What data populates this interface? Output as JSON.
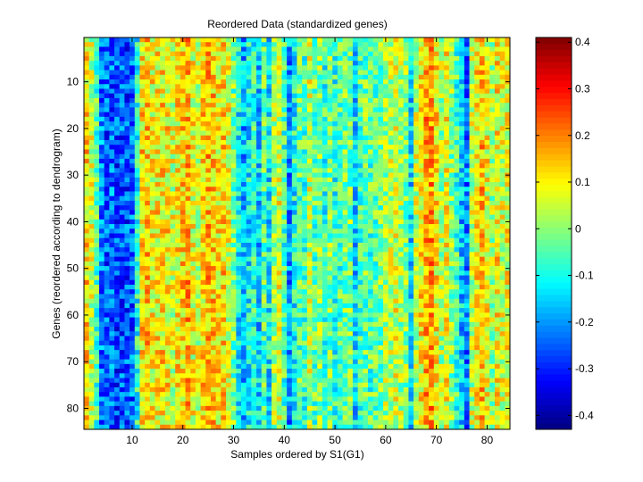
{
  "chart_data": {
    "type": "heatmap",
    "title": "Reordered Data (standardized genes)",
    "xlabel": "Samples ordered by S1(G1)",
    "ylabel": "Genes (reordered according to dendrogram)",
    "xlim": [
      0.5,
      84.5
    ],
    "ylim": [
      0.5,
      84.5
    ],
    "x_ticks": [
      10,
      20,
      30,
      40,
      50,
      60,
      70,
      80
    ],
    "y_ticks": [
      10,
      20,
      30,
      40,
      50,
      60,
      70,
      80
    ],
    "n_samples": 84,
    "n_genes": 84,
    "colormap": "jet",
    "colorbar": {
      "range": [
        -0.43,
        0.41
      ],
      "ticks": [
        -0.4,
        -0.3,
        -0.2,
        -0.1,
        0,
        0.1,
        0.2,
        0.3,
        0.4
      ],
      "tick_labels": [
        "-0.4",
        "-0.3",
        "-0.2",
        "-0.1",
        "0",
        "0.1",
        "0.2",
        "0.3",
        "0.4"
      ],
      "placement": "right"
    },
    "column_means": [
      0.12,
      0.05,
      -0.05,
      -0.22,
      -0.25,
      -0.24,
      -0.27,
      -0.25,
      -0.26,
      -0.24,
      -0.1,
      0.12,
      0.13,
      0.09,
      0.1,
      0.11,
      0.1,
      0.06,
      0.1,
      0.12,
      0.15,
      0.08,
      0.06,
      0.11,
      0.15,
      0.13,
      0.1,
      0.12,
      0.08,
      -0.02,
      -0.12,
      -0.18,
      -0.12,
      -0.08,
      -0.15,
      -0.05,
      -0.12,
      0.02,
      0.06,
      -0.06,
      -0.2,
      -0.1,
      -0.04,
      -0.06,
      0.05,
      -0.04,
      0.0,
      -0.08,
      -0.02,
      -0.08,
      -0.06,
      -0.03,
      -0.02,
      -0.14,
      -0.06,
      -0.03,
      -0.05,
      -0.04,
      -0.02,
      0.02,
      0.04,
      0.06,
      0.02,
      0.0,
      -0.14,
      0.05,
      0.1,
      0.16,
      0.18,
      0.1,
      0.02,
      0.08,
      0.0,
      -0.06,
      -0.16,
      -0.22,
      0.04,
      0.1,
      0.14,
      0.08,
      0.02,
      0.1,
      0.06,
      0.08
    ],
    "noise_amplitude": 0.11
  }
}
